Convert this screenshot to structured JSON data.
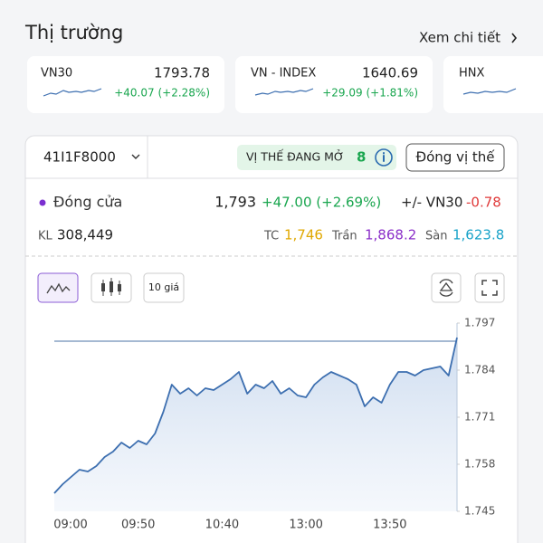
{
  "header": {
    "title": "Thị trường",
    "link": "Xem chi tiết"
  },
  "market": [
    {
      "name": "VN30",
      "value": "1793.78",
      "change": "+40.07 (+2.28%)"
    },
    {
      "name": "VN - INDEX",
      "value": "1640.69",
      "change": "+29.09 (+1.81%)"
    },
    {
      "name": "HNX"
    }
  ],
  "contract": {
    "symbol": "41I1F8000",
    "position_badge": "VỊ THẾ ĐANG MỞ",
    "position_count": "8",
    "close_button": "Đóng vị thế",
    "close_label": "Đóng cửa",
    "close_price": "1,793",
    "close_change": "+47.00 (+2.69%)",
    "basis_label": "+/- VN30",
    "basis_value": "-0.78",
    "volume_label": "KL",
    "volume": "308,449",
    "ref_label": "TC",
    "ref": "1,746",
    "ceiling_label": "Trần",
    "ceiling": "1,868.2",
    "floor_label": "Sàn",
    "floor": "1,623.8"
  },
  "toolbar": {
    "depth_button": "10 giá"
  },
  "chart_data": {
    "type": "line",
    "color": "#3d6fb0",
    "x": [
      "09:00",
      "09:05",
      "09:10",
      "09:15",
      "09:20",
      "09:25",
      "09:30",
      "09:35",
      "09:40",
      "09:45",
      "09:50",
      "09:55",
      "10:00",
      "10:05",
      "10:10",
      "10:15",
      "10:20",
      "10:25",
      "10:30",
      "10:35",
      "10:40",
      "10:45",
      "10:50",
      "10:55",
      "11:00",
      "11:05",
      "11:10",
      "11:15",
      "11:20",
      "11:25",
      "13:00",
      "13:05",
      "13:10",
      "13:15",
      "13:20",
      "13:25",
      "13:30",
      "13:35",
      "13:40",
      "13:45",
      "13:50",
      "13:55",
      "14:00",
      "14:05",
      "14:10",
      "14:15",
      "14:20",
      "14:25",
      "14:30"
    ],
    "values": [
      1750,
      1752.5,
      1754.5,
      1756.5,
      1756,
      1757.5,
      1760,
      1761.5,
      1764,
      1762.5,
      1764.5,
      1763.5,
      1766.5,
      1772.5,
      1780,
      1777.5,
      1779,
      1777,
      1779,
      1778.5,
      1780,
      1781.5,
      1783.5,
      1777.5,
      1780,
      1779,
      1781,
      1777.5,
      1779,
      1777,
      1776.5,
      1780,
      1782,
      1783.5,
      1782.5,
      1781.5,
      1780,
      1774,
      1776.5,
      1775,
      1780,
      1783.5,
      1783.5,
      1782.5,
      1784,
      1784.5,
      1785,
      1782.5,
      1793
    ],
    "ylim": [
      1745,
      1797
    ],
    "yticks": [
      {
        "value": 1745,
        "label": "1.745"
      },
      {
        "value": 1758,
        "label": "1.758"
      },
      {
        "value": 1771,
        "label": "1.771"
      },
      {
        "value": 1784,
        "label": "1.784"
      },
      {
        "value": 1797,
        "label": "1.797"
      }
    ],
    "xticks": [
      "09:00",
      "09:50",
      "10:40",
      "13:00",
      "13:50"
    ],
    "reference_line": 1792
  }
}
